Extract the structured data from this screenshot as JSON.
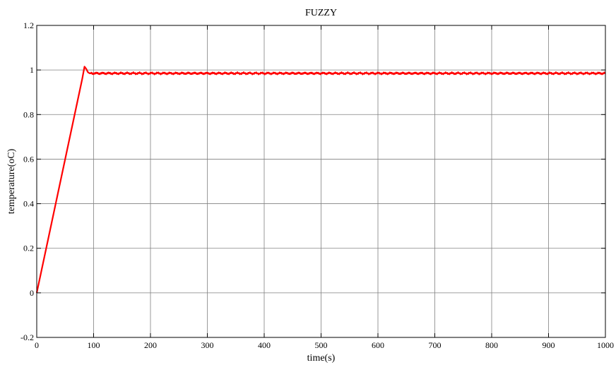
{
  "chart_data": {
    "type": "line",
    "title": "FUZZY",
    "xlabel": "time(s)",
    "ylabel": "temperature(oC)",
    "xlim": [
      0,
      1000
    ],
    "ylim": [
      -0.2,
      1.2
    ],
    "xticks": [
      0,
      100,
      200,
      300,
      400,
      500,
      600,
      700,
      800,
      900,
      1000
    ],
    "yticks": [
      -0.2,
      0,
      0.2,
      0.4,
      0.6,
      0.8,
      1,
      1.2
    ],
    "xtick_labels": [
      "0",
      "100",
      "200",
      "300",
      "400",
      "500",
      "600",
      "700",
      "800",
      "900",
      "1000"
    ],
    "ytick_labels": [
      "-0.2",
      "0",
      "0.2",
      "0.4",
      "0.6",
      "0.8",
      "1",
      "1.2"
    ],
    "grid": true,
    "series": [
      {
        "color": "#ff0000",
        "x": [
          0,
          10,
          20,
          30,
          40,
          50,
          60,
          70,
          80,
          84,
          87,
          90,
          93,
          97,
          100,
          150,
          200,
          250,
          300,
          350,
          400,
          450,
          500,
          550,
          600,
          650,
          700,
          750,
          800,
          850,
          900,
          950,
          1000
        ],
        "y": [
          0,
          0.12,
          0.24,
          0.36,
          0.48,
          0.6,
          0.72,
          0.84,
          0.96,
          1.015,
          1.005,
          0.99,
          0.985,
          0.985,
          0.985,
          0.985,
          0.985,
          0.985,
          0.985,
          0.985,
          0.985,
          0.985,
          0.985,
          0.985,
          0.985,
          0.985,
          0.985,
          0.985,
          0.985,
          0.985,
          0.985,
          0.985,
          0.985
        ]
      }
    ]
  }
}
